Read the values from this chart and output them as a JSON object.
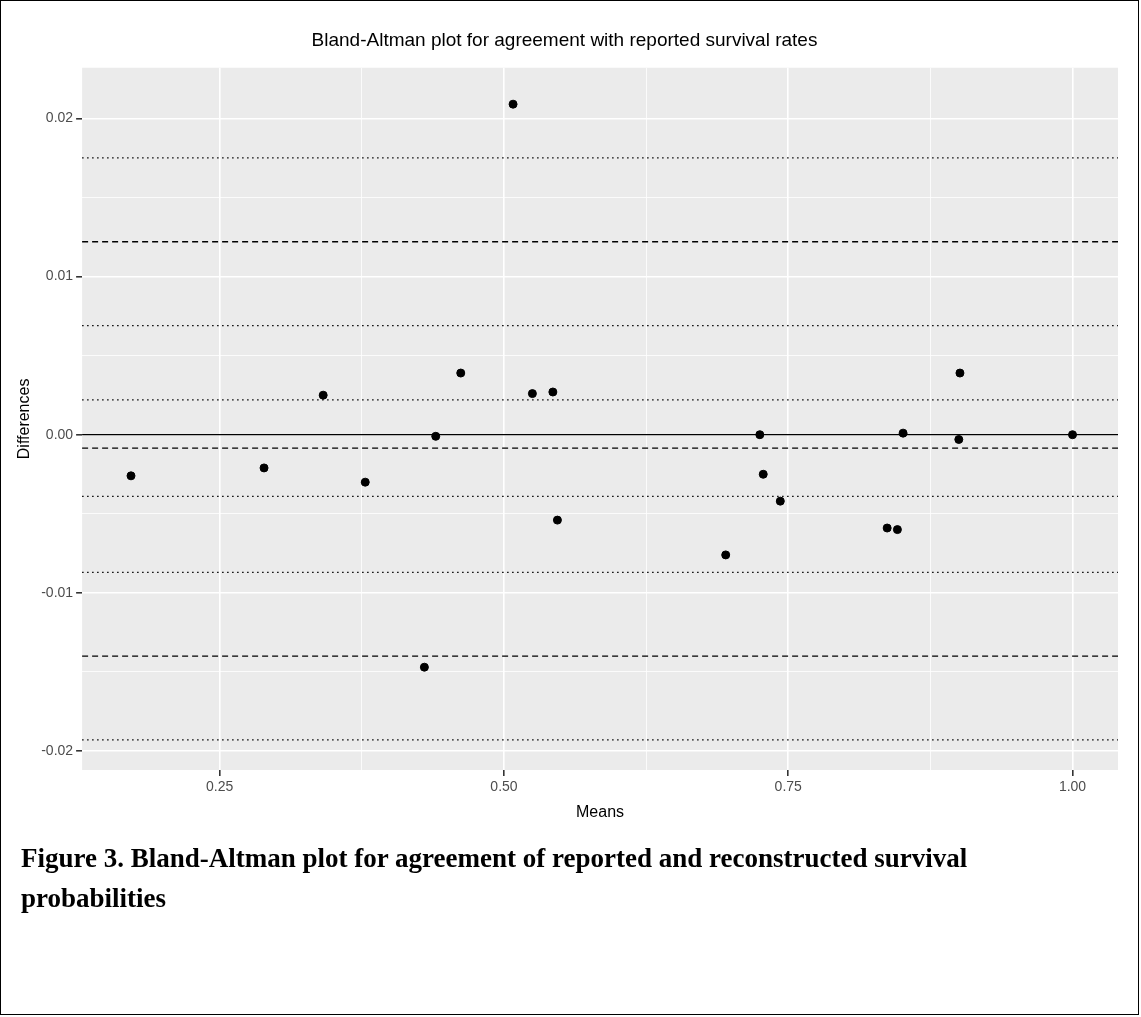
{
  "chart_data": {
    "type": "scatter",
    "title": "Bland-Altman plot for agreement with reported survival rates",
    "xlabel": "Means",
    "ylabel": "Differences",
    "annotations": [
      "Figure 3. Bland-Altman plot for agreement of reported and reconstructed survival probabilities"
    ],
    "x": [
      0.172,
      0.289,
      0.341,
      0.378,
      0.43,
      0.44,
      0.462,
      0.508,
      0.525,
      0.543,
      0.547,
      0.695,
      0.725,
      0.728,
      0.743,
      0.837,
      0.846,
      0.851,
      0.9,
      0.901,
      1.0
    ],
    "series": [
      {
        "color": "#000000",
        "values": [
          -0.0026,
          -0.0021,
          0.0025,
          -0.003,
          -0.0147,
          -0.0001,
          0.0039,
          0.0209,
          0.0026,
          0.0027,
          -0.0054,
          -0.0076,
          0.0,
          -0.0025,
          -0.0042,
          -0.0059,
          -0.006,
          0.0001,
          -0.0003,
          0.0039,
          0.0
        ]
      }
    ],
    "xlim": [
      0.129,
      1.04
    ],
    "xticks": [
      {
        "value": 0.25,
        "label": "0.25"
      },
      {
        "value": 0.375,
        "label": null
      },
      {
        "value": 0.5,
        "label": "0.50"
      },
      {
        "value": 0.625,
        "label": null
      },
      {
        "value": 0.75,
        "label": "0.75"
      },
      {
        "value": 0.875,
        "label": null
      },
      {
        "value": 1.0,
        "label": "1.00"
      }
    ],
    "ylim": [
      -0.0212,
      0.0232
    ],
    "yticks": [
      {
        "value": -0.02,
        "label": "-0.02"
      },
      {
        "value": -0.015,
        "label": null
      },
      {
        "value": -0.01,
        "label": "-0.01"
      },
      {
        "value": -0.005,
        "label": null
      },
      {
        "value": 0,
        "label": "0.00"
      },
      {
        "value": 0.005,
        "label": null
      },
      {
        "value": 0.01,
        "label": "0.01"
      },
      {
        "value": 0.015,
        "label": null
      },
      {
        "value": 0.02,
        "label": "0.02"
      }
    ],
    "ref_lines": [
      {
        "axis": "y",
        "value": 0,
        "color": "#000000",
        "line_style": "solid"
      },
      {
        "axis": "y",
        "value": -0.00085,
        "color": "#000000",
        "line_style": "dashed"
      },
      {
        "axis": "y",
        "value": 0.0122,
        "color": "#000000",
        "line_style": "dashed"
      },
      {
        "axis": "y",
        "value": -0.014,
        "color": "#000000",
        "line_style": "dashed"
      },
      {
        "axis": "y",
        "value": 0.0175,
        "color": "#000000",
        "line_style": "dotted"
      },
      {
        "axis": "y",
        "value": 0.0069,
        "color": "#000000",
        "line_style": "dotted"
      },
      {
        "axis": "y",
        "value": 0.0022,
        "color": "#000000",
        "line_style": "dotted"
      },
      {
        "axis": "y",
        "value": -0.0039,
        "color": "#000000",
        "line_style": "dotted"
      },
      {
        "axis": "y",
        "value": -0.0087,
        "color": "#000000",
        "line_style": "dotted"
      },
      {
        "axis": "y",
        "value": -0.0193,
        "color": "#000000",
        "line_style": "dotted"
      }
    ],
    "grid": true,
    "legend": false,
    "marker": "circle"
  }
}
